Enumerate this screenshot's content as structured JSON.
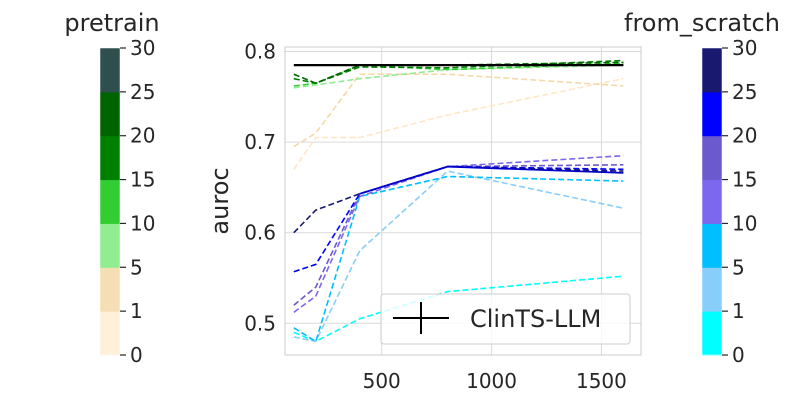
{
  "chart_data": {
    "type": "line",
    "ylabel": "auroc",
    "xlabel": "",
    "xlim": [
      60,
      1680
    ],
    "ylim": [
      0.465,
      0.805
    ],
    "xticks": [
      500,
      1000,
      1500
    ],
    "yticks": [
      0.5,
      0.6,
      0.7,
      0.8
    ],
    "grid": true,
    "x": [
      100,
      200,
      400,
      800,
      1600
    ],
    "legend": {
      "placement": "lower-right",
      "entries": [
        "ClinTS-LLM"
      ]
    },
    "reference": {
      "name": "ClinTS-LLM",
      "color": "#000000",
      "values": [
        0.785,
        0.785,
        0.785,
        0.785,
        0.785
      ]
    },
    "series_pretrain": [
      {
        "level": 0,
        "color": "#FFE6C4",
        "values": [
          0.67,
          0.705,
          0.705,
          0.73,
          0.77
        ]
      },
      {
        "level": 1,
        "color": "#F5D9A8",
        "values": [
          0.695,
          0.71,
          0.775,
          0.775,
          0.762
        ]
      },
      {
        "level": 5,
        "color": "#90EE90",
        "values": [
          0.76,
          0.763,
          0.77,
          0.78,
          0.785
        ]
      },
      {
        "level": 10,
        "color": "#32CD32",
        "values": [
          0.762,
          0.765,
          0.785,
          0.78,
          0.787
        ]
      },
      {
        "level": 15,
        "color": "#008000",
        "values": [
          0.77,
          0.765,
          0.783,
          0.782,
          0.79
        ]
      },
      {
        "level": 20,
        "color": "#006400",
        "values": [
          0.775,
          0.765,
          0.785,
          0.785,
          0.788
        ]
      }
    ],
    "series_from_scratch": [
      {
        "level": 0,
        "color": "#00FFFF",
        "values": [
          0.49,
          0.48,
          0.505,
          0.535,
          0.552
        ]
      },
      {
        "level": 1,
        "color": "#87CEFA",
        "values": [
          0.485,
          0.48,
          0.58,
          0.668,
          0.627
        ]
      },
      {
        "level": 5,
        "color": "#00BFFF",
        "values": [
          0.495,
          0.48,
          0.64,
          0.662,
          0.657
        ]
      },
      {
        "level": 10,
        "color": "#7B68EE",
        "values": [
          0.512,
          0.53,
          0.64,
          0.673,
          0.685
        ]
      },
      {
        "level": 15,
        "color": "#6A5ACD",
        "values": [
          0.52,
          0.54,
          0.643,
          0.673,
          0.675
        ]
      },
      {
        "level": 20,
        "color": "#0000FF",
        "values": [
          0.557,
          0.565,
          0.643,
          0.673,
          0.67
        ]
      },
      {
        "level": 25,
        "color": "#191970",
        "values": [
          0.6,
          0.625,
          0.643,
          0.673,
          0.668
        ]
      }
    ],
    "mean_from_scratch": {
      "color": "#0000CD",
      "values": [
        null,
        null,
        0.643,
        0.673,
        0.666
      ]
    },
    "colorbars": [
      {
        "title": "pretrain",
        "ticks": [
          "0",
          "1",
          "5",
          "10",
          "15",
          "20",
          "25",
          "30"
        ],
        "colors": [
          "#FFF0D9",
          "#F5DEB3",
          "#90EE90",
          "#32CD32",
          "#008000",
          "#006400",
          "#2F4F4F"
        ]
      },
      {
        "title": "from_scratch",
        "ticks": [
          "0",
          "1",
          "5",
          "10",
          "15",
          "20",
          "25",
          "30"
        ],
        "colors": [
          "#00FFFF",
          "#87CEFA",
          "#00BFFF",
          "#7B68EE",
          "#6A5ACD",
          "#0000FF",
          "#191970"
        ]
      }
    ]
  }
}
